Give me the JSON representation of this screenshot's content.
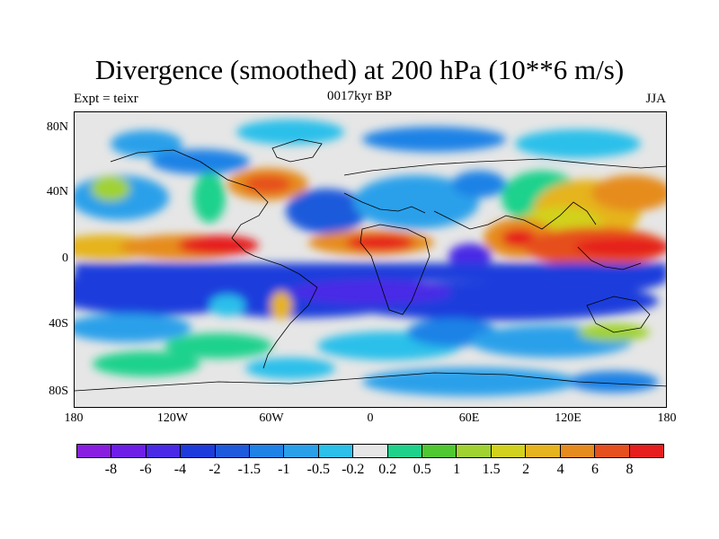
{
  "figure": {
    "title": "Divergence (smoothed) at 200 hPa (10**6 m/s)",
    "left_subtitle": "Expt = teixr",
    "center_subtitle": "0017kyr BP",
    "right_subtitle": "JJA"
  },
  "axes": {
    "lat_ticks": [
      "80N",
      "40N",
      "0",
      "40S",
      "80S"
    ],
    "lon_ticks": [
      "180",
      "120W",
      "60W",
      "0",
      "60E",
      "120E",
      "180"
    ]
  },
  "colorbar": {
    "labels": [
      "-8",
      "-6",
      "-4",
      "-2",
      "-1.5",
      "-1",
      "-0.5",
      "-0.2",
      "0.2",
      "0.5",
      "1",
      "1.5",
      "2",
      "4",
      "6",
      "8"
    ],
    "colors": [
      "#8a1ee0",
      "#6e1ee6",
      "#4a2ae6",
      "#1e3cdc",
      "#1e5adc",
      "#1e82e6",
      "#2aa0ea",
      "#2ac0ea",
      "#e6e6e6",
      "#1ed28c",
      "#50c832",
      "#a0d232",
      "#d2d21e",
      "#e6b41e",
      "#e68c1e",
      "#e6501e",
      "#e61e1e"
    ]
  }
}
